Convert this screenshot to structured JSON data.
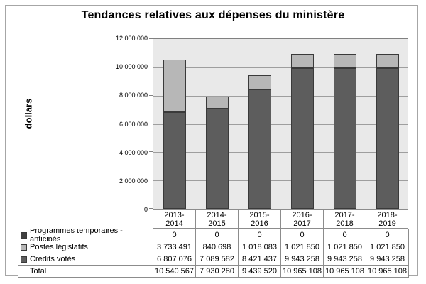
{
  "title": "Tendances relatives aux dépenses du ministère",
  "ylabel": "dollars",
  "chart_data": {
    "type": "bar",
    "stacked": true,
    "title": "Tendances relatives aux dépenses du ministère",
    "xlabel": "",
    "ylabel": "dollars",
    "categories": [
      "2013-\n2014",
      "2014-\n2015",
      "2015-\n2016",
      "2016-\n2017",
      "2017-\n2018",
      "2018-\n2019"
    ],
    "series": [
      {
        "name": "Programmes temporaires - anticipés",
        "color": "#404040",
        "values": [
          0,
          0,
          0,
          0,
          0,
          0
        ]
      },
      {
        "name": "Postes législatifs",
        "color": "#b7b7b7",
        "values": [
          3733491,
          840698,
          1018083,
          1021850,
          1021850,
          1021850
        ]
      },
      {
        "name": "Crédits votés",
        "color": "#5d5d5d",
        "values": [
          6807076,
          7089582,
          8421437,
          9943258,
          9943258,
          9943258
        ]
      }
    ],
    "stack_order_bottom_to_top": [
      "Crédits votés",
      "Postes législatifs",
      "Programmes temporaires - anticipés"
    ],
    "totals": [
      10540567,
      7930280,
      9439520,
      10965108,
      10965108,
      10965108
    ],
    "ylim": [
      0,
      12000000
    ],
    "ytick_step": 2000000,
    "ytick_labels_top_to_bottom": [
      "12 000 000",
      "10 000 000",
      "8 000 000",
      "6 000 000",
      "4 000 000",
      "2 000 000",
      "0"
    ],
    "grid": "horizontal",
    "legend_position": "table-rows-left",
    "plot_bg_color": "#e9e9e9",
    "gridline_color": "#9e9e9e"
  },
  "table": {
    "rows": [
      {
        "label": "Programmes temporaires - anticipés",
        "marker_color": "#404040",
        "values": [
          "0",
          "0",
          "0",
          "0",
          "0",
          "0"
        ]
      },
      {
        "label": "Postes législatifs",
        "marker_color": "#b7b7b7",
        "values": [
          "3 733 491",
          "840 698",
          "1 018 083",
          "1 021 850",
          "1 021 850",
          "1 021 850"
        ]
      },
      {
        "label": "Crédits votés",
        "marker_color": "#5d5d5d",
        "values": [
          "6 807 076",
          "7 089 582",
          "8 421 437",
          "9 943 258",
          "9 943 258",
          "9 943 258"
        ]
      },
      {
        "label": "Total",
        "marker_color": null,
        "values": [
          "10 540 567",
          "7 930 280",
          "9 439 520",
          "10 965 108",
          "10 965 108",
          "10 965 108"
        ]
      }
    ]
  }
}
